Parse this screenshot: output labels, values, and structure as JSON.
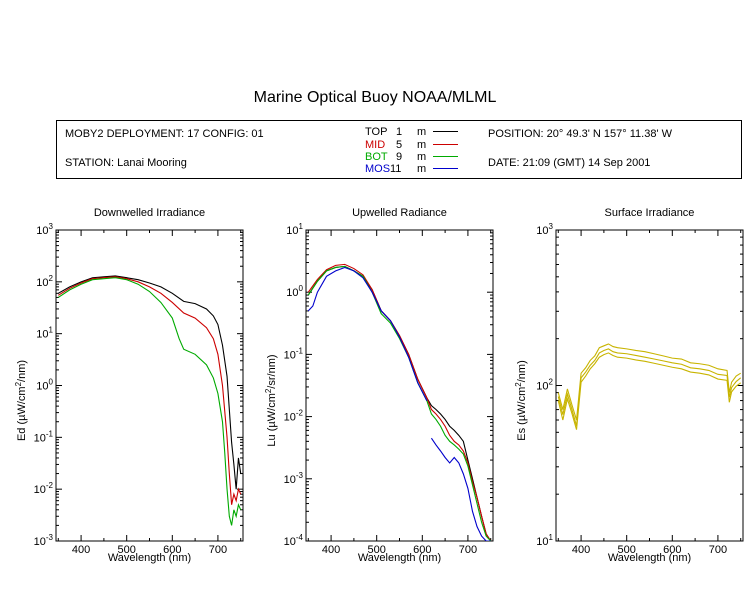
{
  "title": "Marine Optical Buoy NOAA/MLML",
  "info": {
    "deployment": "MOBY2 DEPLOYMENT: 17 CONFIG: 01",
    "station": "STATION: Lanai Mooring",
    "position": "POSITION: 20° 49.3' N   157° 11.38' W",
    "date": "DATE: 21:09 (GMT) 14 Sep 2001",
    "legend": [
      {
        "name": "TOP",
        "depth": "1",
        "unit": "m",
        "color": "#000000"
      },
      {
        "name": "MID",
        "depth": "5",
        "unit": "m",
        "color": "#cc0000"
      },
      {
        "name": "BOT",
        "depth": "9",
        "unit": "m",
        "color": "#00aa00"
      },
      {
        "name": "MOS",
        "depth": "11",
        "unit": "m",
        "color": "#0000cc"
      }
    ]
  },
  "chart_data": [
    {
      "type": "line",
      "title": "Downwelled Irradiance",
      "xlabel": "Wavelength (nm)",
      "ylabel": "Ed  (µW/cm²/nm)",
      "ylabel_parts": [
        "Ed  (",
        "µ",
        "W/cm",
        "2",
        "/nm)"
      ],
      "xlim": [
        345,
        755
      ],
      "ylim": [
        0.001,
        1000
      ],
      "yscale": "log",
      "xticks": [
        400,
        500,
        600,
        700
      ],
      "yticks": [
        0.001,
        0.01,
        0.1,
        1,
        10,
        100,
        1000
      ],
      "ytick_labels": [
        [
          "10",
          "-3"
        ],
        [
          "10",
          "-2"
        ],
        [
          "10",
          "-1"
        ],
        [
          "10",
          "0"
        ],
        [
          "10",
          "1"
        ],
        [
          "10",
          "2"
        ],
        [
          "10",
          "3"
        ]
      ],
      "series": [
        {
          "name": "TOP",
          "color": "#000000",
          "x": [
            350,
            375,
            400,
            425,
            450,
            475,
            500,
            525,
            550,
            575,
            600,
            625,
            650,
            675,
            690,
            700,
            710,
            720,
            730,
            735,
            740,
            745,
            750
          ],
          "y": [
            60,
            80,
            100,
            120,
            125,
            130,
            120,
            110,
            95,
            80,
            60,
            42,
            38,
            30,
            22,
            15,
            6,
            1.5,
            0.08,
            0.03,
            0.01,
            0.04,
            0.02
          ]
        },
        {
          "name": "MID",
          "color": "#cc0000",
          "x": [
            350,
            375,
            400,
            425,
            450,
            475,
            500,
            525,
            550,
            575,
            600,
            625,
            650,
            675,
            690,
            700,
            710,
            720,
            725,
            730,
            735,
            740,
            745,
            750
          ],
          "y": [
            55,
            75,
            95,
            115,
            120,
            125,
            115,
            100,
            80,
            60,
            40,
            25,
            20,
            13,
            8,
            4,
            1,
            0.1,
            0.02,
            0.005,
            0.008,
            0.006,
            0.01,
            0.008
          ]
        },
        {
          "name": "BOT",
          "color": "#00aa00",
          "x": [
            350,
            375,
            400,
            425,
            450,
            475,
            500,
            525,
            550,
            575,
            600,
            615,
            625,
            650,
            675,
            690,
            700,
            710,
            715,
            720,
            725,
            730,
            735,
            740,
            745,
            750
          ],
          "y": [
            50,
            70,
            90,
            110,
            115,
            120,
            110,
            90,
            65,
            40,
            20,
            8,
            5,
            4,
            2.5,
            1.4,
            0.7,
            0.2,
            0.05,
            0.01,
            0.003,
            0.002,
            0.004,
            0.003,
            0.005,
            0.004
          ]
        }
      ]
    },
    {
      "type": "line",
      "title": "Upwelled Radiance",
      "xlabel": "Wavelength (nm)",
      "ylabel": "Lu  (µW/cm²/sr/nm)",
      "ylabel_parts": [
        "Lu  (",
        "µ",
        "W/cm",
        "2",
        "/sr/nm)"
      ],
      "xlim": [
        345,
        755
      ],
      "ylim": [
        0.0001,
        10
      ],
      "yscale": "log",
      "xticks": [
        400,
        500,
        600,
        700
      ],
      "yticks": [
        0.0001,
        0.001,
        0.01,
        0.1,
        1,
        10
      ],
      "ytick_labels": [
        [
          "10",
          "-4"
        ],
        [
          "10",
          "-3"
        ],
        [
          "10",
          "-2"
        ],
        [
          "10",
          "-1"
        ],
        [
          "10",
          "0"
        ],
        [
          "10",
          "1"
        ]
      ],
      "series": [
        {
          "name": "TOP",
          "color": "#000000",
          "x": [
            350,
            370,
            390,
            410,
            430,
            450,
            470,
            490,
            510,
            530,
            550,
            570,
            590,
            610,
            620,
            630,
            640,
            650,
            660,
            670,
            680,
            690,
            700,
            710,
            720,
            730,
            740,
            750
          ],
          "y": [
            0.9,
            1.5,
            2.2,
            2.5,
            2.6,
            2.2,
            1.8,
            1.1,
            0.5,
            0.35,
            0.2,
            0.1,
            0.04,
            0.02,
            0.015,
            0.013,
            0.011,
            0.009,
            0.007,
            0.006,
            0.005,
            0.004,
            0.002,
            0.001,
            0.0005,
            0.00025,
            0.00013,
            0.0001
          ]
        },
        {
          "name": "MID",
          "color": "#cc0000",
          "x": [
            350,
            370,
            390,
            410,
            430,
            450,
            470,
            490,
            510,
            530,
            550,
            570,
            590,
            610,
            620,
            630,
            640,
            650,
            660,
            670,
            680,
            690,
            700,
            710,
            720,
            730,
            740,
            750
          ],
          "y": [
            1.0,
            1.6,
            2.3,
            2.7,
            2.8,
            2.4,
            1.9,
            1.1,
            0.5,
            0.35,
            0.2,
            0.1,
            0.04,
            0.02,
            0.013,
            0.011,
            0.009,
            0.007,
            0.005,
            0.004,
            0.0035,
            0.0028,
            0.0018,
            0.0009,
            0.0005,
            0.00025,
            0.00013,
            0.0001
          ]
        },
        {
          "name": "BOT",
          "color": "#00aa00",
          "x": [
            350,
            370,
            390,
            410,
            430,
            450,
            470,
            490,
            510,
            530,
            550,
            570,
            590,
            610,
            620,
            630,
            640,
            650,
            660,
            670,
            680,
            690,
            700,
            710,
            720,
            730,
            740,
            750
          ],
          "y": [
            0.9,
            1.5,
            2.2,
            2.5,
            2.6,
            2.2,
            1.8,
            1.0,
            0.45,
            0.32,
            0.18,
            0.09,
            0.035,
            0.018,
            0.011,
            0.009,
            0.007,
            0.005,
            0.004,
            0.0035,
            0.003,
            0.0025,
            0.0016,
            0.0008,
            0.0004,
            0.0002,
            0.00012,
            0.0001
          ]
        },
        {
          "name": "MOS",
          "color": "#0000cc",
          "x": [
            350,
            360,
            370,
            390,
            410,
            430,
            450,
            470,
            490,
            510,
            530,
            550,
            570,
            590,
            610
          ],
          "y": [
            0.5,
            0.6,
            1.0,
            1.8,
            2.2,
            2.5,
            2.2,
            1.7,
            1.0,
            0.5,
            0.35,
            0.19,
            0.09,
            0.035,
            0.018
          ]
        },
        {
          "name": "MOS",
          "color": "#0000cc",
          "x": [
            620,
            630,
            640,
            650,
            660,
            670,
            680,
            690,
            700,
            710,
            720,
            730,
            740,
            750
          ],
          "y": [
            0.0045,
            0.0035,
            0.0028,
            0.0022,
            0.0018,
            0.0022,
            0.0018,
            0.0012,
            0.0007,
            0.0003,
            0.00017,
            0.00012,
            0.0001,
            0.0001
          ]
        }
      ]
    },
    {
      "type": "line",
      "title": "Surface Irradiance",
      "xlabel": "Wavelength (nm)",
      "ylabel": "Es  (µW/cm²/nm)",
      "ylabel_parts": [
        "Es  (",
        "µ",
        "W/cm",
        "2",
        "/nm)"
      ],
      "xlim": [
        345,
        755
      ],
      "ylim": [
        10,
        1000
      ],
      "yscale": "log",
      "xticks": [
        400,
        500,
        600,
        700
      ],
      "yticks": [
        10,
        100,
        1000
      ],
      "ytick_labels": [
        [
          "10",
          "1"
        ],
        [
          "10",
          "2"
        ],
        [
          "10",
          "3"
        ]
      ],
      "series": [
        {
          "name": "Es",
          "color": "#c8b400",
          "x": [
            350,
            360,
            370,
            380,
            390,
            400,
            410,
            420,
            430,
            440,
            450,
            460,
            470,
            480,
            500,
            520,
            540,
            560,
            580,
            600,
            620,
            640,
            660,
            680,
            700,
            720,
            725,
            730,
            740,
            750
          ],
          "y": [
            90,
            70,
            95,
            75,
            60,
            120,
            130,
            145,
            155,
            175,
            180,
            185,
            178,
            175,
            172,
            168,
            165,
            160,
            155,
            150,
            148,
            140,
            138,
            135,
            128,
            125,
            90,
            105,
            115,
            120
          ]
        },
        {
          "name": "Es",
          "color": "#c8b400",
          "x": [
            350,
            360,
            370,
            380,
            390,
            400,
            410,
            420,
            430,
            440,
            450,
            460,
            470,
            480,
            500,
            520,
            540,
            560,
            580,
            600,
            620,
            640,
            660,
            680,
            700,
            720,
            725,
            730,
            740,
            750
          ],
          "y": [
            85,
            65,
            88,
            70,
            55,
            112,
            122,
            135,
            145,
            162,
            168,
            172,
            165,
            162,
            160,
            156,
            152,
            148,
            144,
            140,
            137,
            130,
            128,
            125,
            118,
            116,
            84,
            97,
            106,
            112
          ]
        },
        {
          "name": "Es",
          "color": "#c8b400",
          "x": [
            350,
            360,
            370,
            380,
            390,
            400,
            410,
            420,
            430,
            440,
            450,
            460,
            470,
            480,
            500,
            520,
            540,
            560,
            580,
            600,
            620,
            640,
            660,
            680,
            700,
            720,
            725,
            730,
            740,
            750
          ],
          "y": [
            80,
            60,
            82,
            66,
            52,
            105,
            115,
            128,
            138,
            152,
            158,
            162,
            156,
            152,
            150,
            146,
            143,
            139,
            135,
            131,
            128,
            122,
            120,
            117,
            110,
            108,
            78,
            91,
            99,
            104
          ]
        }
      ]
    }
  ]
}
